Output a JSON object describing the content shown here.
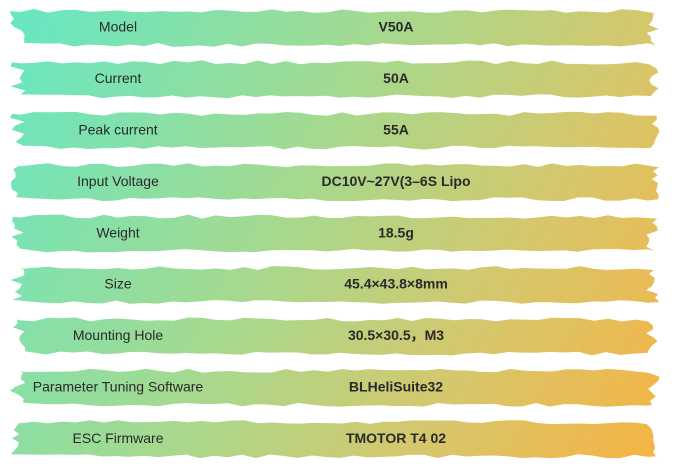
{
  "table": {
    "rows": [
      [
        "Model",
        "V50A"
      ],
      [
        "Current",
        "50A"
      ],
      [
        "Peak current",
        "55A"
      ],
      [
        "Input Voltage",
        "DC10V~27V(3–6S Lipo"
      ],
      [
        "Weight",
        "18.5g"
      ],
      [
        "Size",
        "45.4×43.8×8mm"
      ],
      [
        "Mounting Hole",
        "30.5×30.5，M3"
      ],
      [
        "Parameter Tuning Software",
        "BLHeliSuite32"
      ],
      [
        "ESC Firmware",
        "TMOTOR T4 02"
      ]
    ]
  }
}
